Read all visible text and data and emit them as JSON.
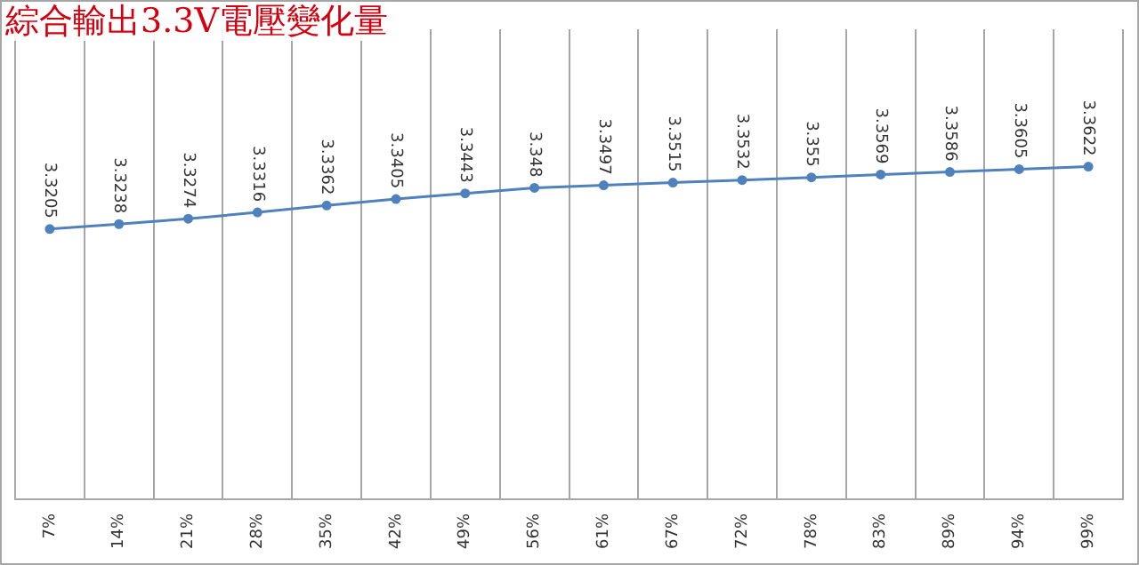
{
  "chart_data": {
    "type": "line",
    "title": "綜合輸出3.3V電壓變化量",
    "categories": [
      "7%",
      "14%",
      "21%",
      "28%",
      "35%",
      "42%",
      "49%",
      "56%",
      "61%",
      "67%",
      "72%",
      "78%",
      "83%",
      "89%",
      "94%",
      "99%"
    ],
    "values": [
      3.3205,
      3.3238,
      3.3274,
      3.3316,
      3.3362,
      3.3405,
      3.3443,
      3.348,
      3.3497,
      3.3515,
      3.3532,
      3.355,
      3.3569,
      3.3586,
      3.3605,
      3.3622
    ],
    "color": "#4f81bd",
    "marker": "circle",
    "data_labels": true,
    "grid": "x",
    "legend": false,
    "tick_labels": "x"
  }
}
